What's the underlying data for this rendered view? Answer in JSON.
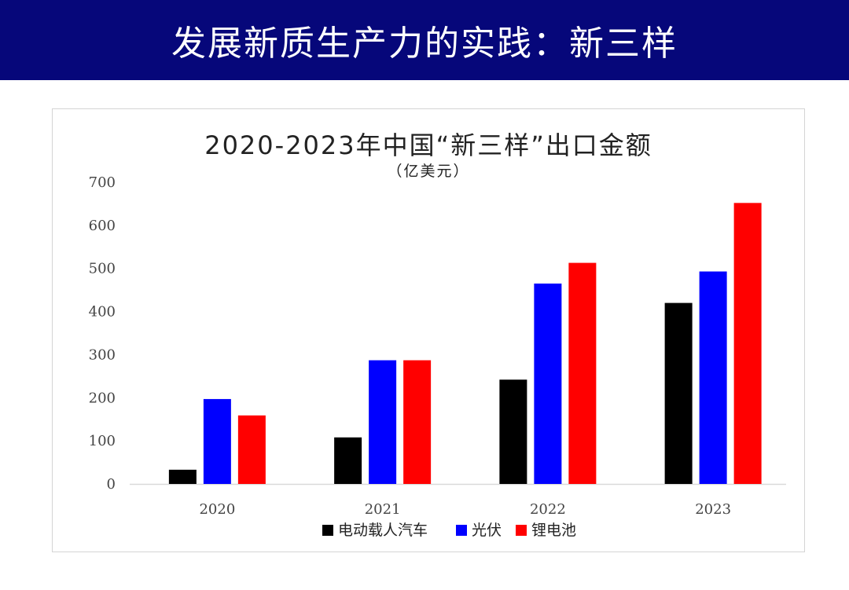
{
  "slide": {
    "title": "发展新质生产力的实践：新三样"
  },
  "chart_data": {
    "type": "bar",
    "title": "2020-2023年中国“新三样”出口金额",
    "subtitle": "（亿美元）",
    "categories": [
      "2020",
      "2021",
      "2022",
      "2023"
    ],
    "series": [
      {
        "name": "电动载人汽车",
        "color": "#000000",
        "values": [
          33,
          108,
          242,
          420
        ]
      },
      {
        "name": "光伏",
        "color": "#0000ff",
        "values": [
          197,
          287,
          465,
          493
        ]
      },
      {
        "name": "锂电池",
        "color": "#ff0000",
        "values": [
          159,
          287,
          513,
          652
        ]
      }
    ],
    "ylim": [
      0,
      700
    ],
    "yticks": [
      "0",
      "100",
      "200",
      "300",
      "400",
      "500",
      "600",
      "700"
    ],
    "grid": false,
    "legend": "bottom"
  }
}
